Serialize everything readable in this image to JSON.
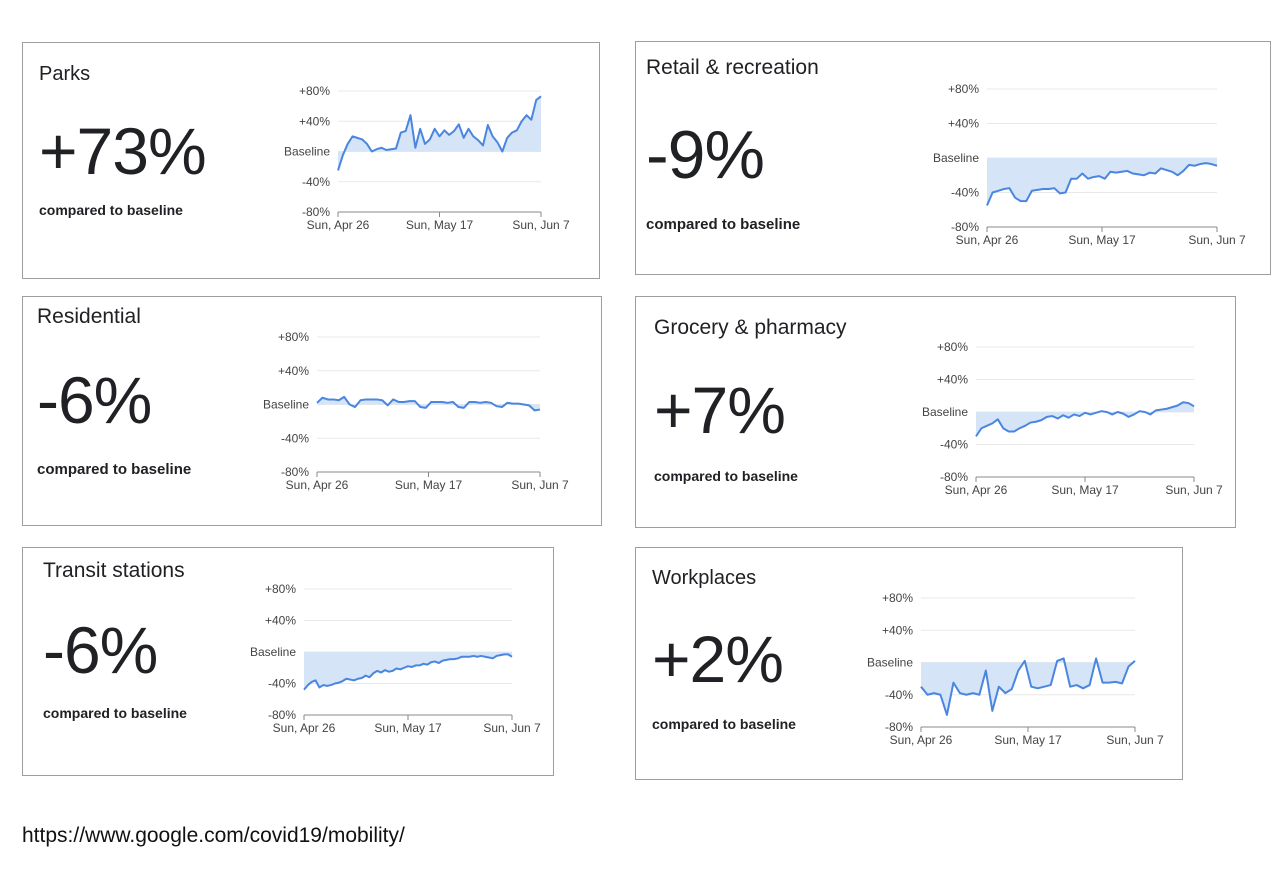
{
  "chart_data": [
    {
      "type": "area",
      "title": "Parks",
      "headline": "+73%",
      "subtitle": "compared to baseline",
      "y_ticks": [
        "+80%",
        "+40%",
        "Baseline",
        "-40%",
        "-80%"
      ],
      "x_ticks": [
        "Sun, Apr 26",
        "Sun, May 17",
        "Sun, Jun 7"
      ],
      "ylim": [
        -80,
        80
      ],
      "values": [
        -25,
        -5,
        10,
        20,
        18,
        16,
        10,
        0,
        3,
        5,
        2,
        3,
        4,
        25,
        27,
        48,
        5,
        30,
        10,
        16,
        30,
        20,
        28,
        22,
        27,
        36,
        18,
        30,
        20,
        15,
        8,
        35,
        20,
        12,
        0,
        18,
        25,
        28,
        40,
        48,
        42,
        68,
        73
      ]
    },
    {
      "type": "area",
      "title": "Retail & recreation",
      "headline": "-9%",
      "subtitle": "compared to baseline",
      "y_ticks": [
        "+80%",
        "+40%",
        "Baseline",
        "-40%",
        "-80%"
      ],
      "x_ticks": [
        "Sun, Apr 26",
        "Sun, May 17",
        "Sun, Jun 7"
      ],
      "ylim": [
        -80,
        80
      ],
      "values": [
        -55,
        -40,
        -38,
        -36,
        -35,
        -46,
        -50,
        -50,
        -38,
        -37,
        -36,
        -36,
        -35,
        -41,
        -40,
        -24,
        -24,
        -18,
        -24,
        -22,
        -21,
        -24,
        -16,
        -17,
        -16,
        -15,
        -18,
        -19,
        -20,
        -17,
        -18,
        -12,
        -14,
        -16,
        -20,
        -15,
        -8,
        -9,
        -7,
        -6,
        -7,
        -9
      ]
    },
    {
      "type": "area",
      "title": "Residential",
      "headline": "-6%",
      "subtitle": "compared to baseline",
      "y_ticks": [
        "+80%",
        "+40%",
        "Baseline",
        "-40%",
        "-80%"
      ],
      "x_ticks": [
        "Sun, Apr 26",
        "Sun, May 17",
        "Sun, Jun 7"
      ],
      "ylim": [
        -80,
        80
      ],
      "values": [
        2,
        8,
        6,
        6,
        5,
        9,
        0,
        -3,
        5,
        6,
        6,
        6,
        5,
        -1,
        6,
        3,
        3,
        4,
        4,
        -3,
        -4,
        3,
        3,
        3,
        2,
        3,
        -3,
        -4,
        3,
        3,
        2,
        3,
        2,
        -2,
        -3,
        2,
        1,
        1,
        0,
        -1,
        -7,
        -6
      ]
    },
    {
      "type": "area",
      "title": "Grocery & pharmacy",
      "headline": "+7%",
      "subtitle": "compared to baseline",
      "y_ticks": [
        "+80%",
        "+40%",
        "Baseline",
        "-40%",
        "-80%"
      ],
      "x_ticks": [
        "Sun, Apr 26",
        "Sun, May 17",
        "Sun, Jun 7"
      ],
      "ylim": [
        -80,
        80
      ],
      "values": [
        -30,
        -20,
        -17,
        -14,
        -9,
        -20,
        -24,
        -24,
        -20,
        -17,
        -13,
        -12,
        -10,
        -6,
        -5,
        -8,
        -4,
        -7,
        -3,
        -5,
        -1,
        -3,
        -1,
        1,
        0,
        -3,
        0,
        -2,
        -6,
        -3,
        1,
        0,
        -3,
        2,
        3,
        4,
        6,
        8,
        12,
        11,
        7
      ]
    },
    {
      "type": "area",
      "title": "Transit stations",
      "headline": "-6%",
      "subtitle": "compared to baseline",
      "y_ticks": [
        "+80%",
        "+40%",
        "Baseline",
        "-40%",
        "-80%"
      ],
      "x_ticks": [
        "Sun, Apr 26",
        "Sun, May 17",
        "Sun, Jun 7"
      ],
      "ylim": [
        -80,
        80
      ],
      "values": [
        -48,
        -42,
        -38,
        -36,
        -45,
        -42,
        -43,
        -42,
        -40,
        -39,
        -37,
        -34,
        -35,
        -36,
        -34,
        -33,
        -30,
        -32,
        -27,
        -24,
        -26,
        -23,
        -25,
        -24,
        -21,
        -22,
        -20,
        -18,
        -19,
        -17,
        -17,
        -15,
        -16,
        -13,
        -12,
        -14,
        -11,
        -10,
        -9,
        -9,
        -8,
        -6,
        -6,
        -6,
        -5,
        -6,
        -5,
        -6,
        -7,
        -8,
        -5,
        -4,
        -3,
        -3,
        -6
      ]
    },
    {
      "type": "area",
      "title": "Workplaces",
      "headline": "+2%",
      "subtitle": "compared to baseline",
      "y_ticks": [
        "+80%",
        "+40%",
        "Baseline",
        "-40%",
        "-80%"
      ],
      "x_ticks": [
        "Sun, Apr 26",
        "Sun, May 17",
        "Sun, Jun 7"
      ],
      "ylim": [
        -80,
        80
      ],
      "values": [
        -30,
        -40,
        -38,
        -40,
        -65,
        -25,
        -38,
        -40,
        -38,
        -40,
        -10,
        -60,
        -30,
        -38,
        -33,
        -10,
        2,
        -30,
        -32,
        -30,
        -28,
        2,
        5,
        -30,
        -28,
        -32,
        -28,
        5,
        -25,
        -25,
        -24,
        -26,
        -5,
        2
      ]
    }
  ],
  "footer": {
    "url": "https://www.google.com/covid19/mobility/"
  },
  "colors": {
    "line": "#4a86e0",
    "fill": "#d6e4f8",
    "grid": "#e8e8e8",
    "axis": "#888888"
  }
}
